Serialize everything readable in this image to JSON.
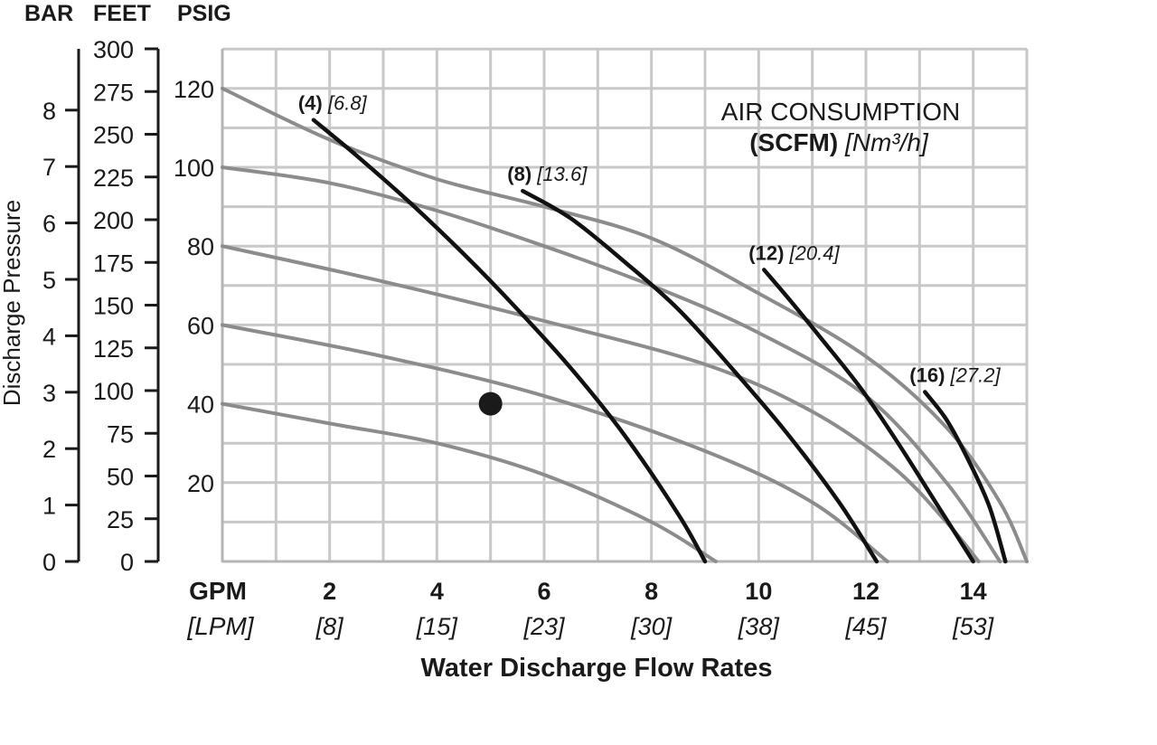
{
  "chart_data": {
    "type": "line",
    "title_line1": "AIR CONSUMPTION",
    "title_line2_bold": "(SCFM)",
    "title_line2_italic": "[Nm³/h]",
    "xlabel": "Water Discharge Flow Rates",
    "x_unit_primary": "GPM",
    "x_unit_secondary": "[LPM]",
    "ylabel": "Discharge Pressure",
    "y_unit_headers": [
      "BAR",
      "FEET",
      "PSIG"
    ],
    "xlim": [
      0,
      15
    ],
    "ylim_psig": [
      0,
      130
    ],
    "grid": true,
    "x_ticks": [
      {
        "gpm": 2,
        "label": "2",
        "lpm": "[8]"
      },
      {
        "gpm": 4,
        "label": "4",
        "lpm": "[15]"
      },
      {
        "gpm": 6,
        "label": "6",
        "lpm": "[23]"
      },
      {
        "gpm": 8,
        "label": "8",
        "lpm": "[30]"
      },
      {
        "gpm": 10,
        "label": "10",
        "lpm": "[38]"
      },
      {
        "gpm": 12,
        "label": "12",
        "lpm": "[45]"
      },
      {
        "gpm": 14,
        "label": "14",
        "lpm": "[53]"
      }
    ],
    "psig_ticks": [
      {
        "value": 20,
        "label": "20"
      },
      {
        "value": 40,
        "label": "40"
      },
      {
        "value": 60,
        "label": "60"
      },
      {
        "value": 80,
        "label": "80"
      },
      {
        "value": 100,
        "label": "100"
      },
      {
        "value": 120,
        "label": "120"
      }
    ],
    "feet_ticks": [
      {
        "value": 0,
        "label": "0"
      },
      {
        "value": 25,
        "label": "25"
      },
      {
        "value": 50,
        "label": "50"
      },
      {
        "value": 75,
        "label": "75"
      },
      {
        "value": 100,
        "label": "100"
      },
      {
        "value": 125,
        "label": "125"
      },
      {
        "value": 150,
        "label": "150"
      },
      {
        "value": 175,
        "label": "175"
      },
      {
        "value": 200,
        "label": "200"
      },
      {
        "value": 225,
        "label": "225"
      },
      {
        "value": 250,
        "label": "250"
      },
      {
        "value": 275,
        "label": "275"
      },
      {
        "value": 300,
        "label": "300"
      }
    ],
    "bar_ticks": [
      {
        "value": 0,
        "label": "0"
      },
      {
        "value": 1,
        "label": "1"
      },
      {
        "value": 2,
        "label": "2"
      },
      {
        "value": 3,
        "label": "3"
      },
      {
        "value": 4,
        "label": "4"
      },
      {
        "value": 5,
        "label": "5"
      },
      {
        "value": 6,
        "label": "6"
      },
      {
        "value": 7,
        "label": "7"
      },
      {
        "value": 8,
        "label": "8"
      }
    ],
    "performance_curves": [
      {
        "points": [
          [
            0,
            40
          ],
          [
            2,
            35
          ],
          [
            4,
            30
          ],
          [
            6,
            22
          ],
          [
            8,
            10
          ],
          [
            9.2,
            0
          ]
        ]
      },
      {
        "points": [
          [
            0,
            60
          ],
          [
            3,
            52
          ],
          [
            6,
            42
          ],
          [
            9,
            28
          ],
          [
            11,
            15
          ],
          [
            12.4,
            0
          ]
        ]
      },
      {
        "points": [
          [
            0,
            80
          ],
          [
            3,
            71
          ],
          [
            6,
            61
          ],
          [
            9,
            50
          ],
          [
            11,
            38
          ],
          [
            12.5,
            24
          ],
          [
            13.5,
            10
          ],
          [
            14.1,
            0
          ]
        ]
      },
      {
        "points": [
          [
            0,
            100
          ],
          [
            2,
            96
          ],
          [
            4,
            89
          ],
          [
            6,
            80
          ],
          [
            8,
            70
          ],
          [
            10,
            58
          ],
          [
            12,
            42
          ],
          [
            13.5,
            20
          ],
          [
            14.5,
            0
          ]
        ]
      },
      {
        "points": [
          [
            0,
            120
          ],
          [
            2,
            107
          ],
          [
            4,
            97
          ],
          [
            6,
            90
          ],
          [
            8,
            82
          ],
          [
            10,
            68
          ],
          [
            12,
            52
          ],
          [
            13.5,
            34
          ],
          [
            14.5,
            15
          ],
          [
            15,
            0
          ]
        ]
      }
    ],
    "air_consumption_curves": [
      {
        "label_scfm": "(4)",
        "label_nm3h": "[6.8]",
        "points": [
          [
            1.7,
            112
          ],
          [
            2.5,
            103
          ],
          [
            3.5,
            91
          ],
          [
            4.5,
            78
          ],
          [
            5.5,
            64
          ],
          [
            6.5,
            49
          ],
          [
            7.5,
            32
          ],
          [
            8.5,
            12
          ],
          [
            9,
            0
          ]
        ]
      },
      {
        "label_scfm": "(8)",
        "label_nm3h": "[13.6]",
        "points": [
          [
            5.6,
            94
          ],
          [
            6.5,
            87
          ],
          [
            7.5,
            76
          ],
          [
            8.5,
            64
          ],
          [
            9.5,
            49
          ],
          [
            10.5,
            33
          ],
          [
            11.5,
            15
          ],
          [
            12.2,
            0
          ]
        ]
      },
      {
        "label_scfm": "(12)",
        "label_nm3h": "[20.4]",
        "points": [
          [
            10.1,
            74
          ],
          [
            10.6,
            66
          ],
          [
            11.2,
            56
          ],
          [
            11.9,
            44
          ],
          [
            12.6,
            30
          ],
          [
            13.3,
            15
          ],
          [
            14,
            0
          ]
        ]
      },
      {
        "label_scfm": "(16)",
        "label_nm3h": "[27.2]",
        "points": [
          [
            13.1,
            43
          ],
          [
            13.5,
            36
          ],
          [
            13.9,
            26
          ],
          [
            14.3,
            14
          ],
          [
            14.6,
            0
          ]
        ]
      }
    ],
    "marker_point": {
      "gpm": 5,
      "psig": 40
    }
  }
}
